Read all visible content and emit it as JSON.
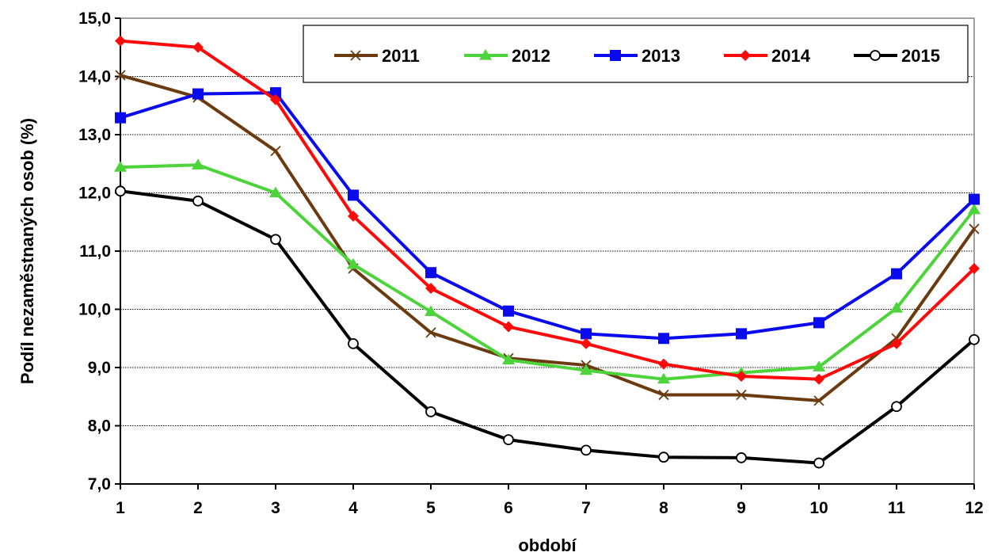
{
  "chart_data": {
    "type": "line",
    "title": "",
    "xlabel": "období",
    "ylabel": "Podíl nezaměstnaných osob (%)",
    "x": [
      1,
      2,
      3,
      4,
      5,
      6,
      7,
      8,
      9,
      10,
      11,
      12
    ],
    "x_tick_labels": [
      "1",
      "2",
      "3",
      "4",
      "5",
      "6",
      "7",
      "8",
      "9",
      "10",
      "11",
      "12"
    ],
    "ylim": [
      7.0,
      15.0
    ],
    "y_ticks": [
      7.0,
      8.0,
      9.0,
      10.0,
      11.0,
      12.0,
      13.0,
      14.0,
      15.0
    ],
    "y_tick_labels": [
      "7,0",
      "8,0",
      "9,0",
      "10,0",
      "11,0",
      "12,0",
      "13,0",
      "14,0",
      "15,0"
    ],
    "grid": "horizontal",
    "legend_position": "top-right",
    "series": [
      {
        "name": "2011",
        "color": "#6b3a0f",
        "marker": "x",
        "values": [
          14.02,
          13.64,
          12.72,
          10.7,
          9.6,
          9.16,
          9.04,
          8.53,
          8.53,
          8.43,
          9.5,
          11.38
        ]
      },
      {
        "name": "2012",
        "color": "#4cd43a",
        "marker": "triangle",
        "values": [
          12.44,
          12.48,
          12.0,
          10.77,
          9.96,
          9.13,
          8.95,
          8.8,
          8.91,
          9.01,
          10.02,
          11.71
        ]
      },
      {
        "name": "2013",
        "color": "#0a0aee",
        "marker": "square",
        "values": [
          13.29,
          13.7,
          13.72,
          11.96,
          10.63,
          9.97,
          9.58,
          9.5,
          9.58,
          9.77,
          10.61,
          11.89
        ]
      },
      {
        "name": "2014",
        "color": "#ff0a0a",
        "marker": "diamond",
        "values": [
          14.61,
          14.5,
          13.6,
          11.6,
          10.36,
          9.7,
          9.41,
          9.06,
          8.85,
          8.8,
          9.41,
          10.7
        ]
      },
      {
        "name": "2015",
        "color": "#000000",
        "marker": "circle",
        "values": [
          12.03,
          11.86,
          11.2,
          9.41,
          8.24,
          7.76,
          7.58,
          7.46,
          7.45,
          7.36,
          8.33,
          9.48
        ]
      }
    ]
  }
}
